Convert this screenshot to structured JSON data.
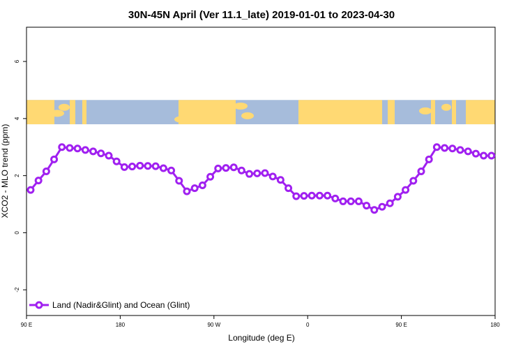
{
  "chart_data": {
    "type": "line",
    "title": "30N-45N April (Ver 11.1_late)   2019-01-01 to 2023-04-30",
    "xlabel": "Longitude (deg E)",
    "ylabel": "XCO2 - MLO trend (ppm)",
    "x_ticks": [
      {
        "value": 90,
        "label": "90 E"
      },
      {
        "value": 180,
        "label": "180"
      },
      {
        "value": 270,
        "label": "90 W"
      },
      {
        "value": 360,
        "label": "0"
      },
      {
        "value": 450,
        "label": "90 E"
      },
      {
        "value": 540,
        "label": "180"
      }
    ],
    "y_ticks": [
      {
        "value": -2,
        "label": "-2"
      },
      {
        "value": 0,
        "label": "0"
      },
      {
        "value": 2,
        "label": "2"
      },
      {
        "value": 4,
        "label": "4"
      },
      {
        "value": 6,
        "label": "6"
      }
    ],
    "xlim": [
      90,
      540
    ],
    "ylim": [
      -2.9,
      7.2
    ],
    "grid": false,
    "legend_position": "bottom-left",
    "map_band": {
      "y_range": [
        3.8,
        4.65
      ],
      "land_color": "#FFD973",
      "ocean_color": "#A6BCDB"
    },
    "series": [
      {
        "name": "Land (Nadir&Glint) and Ocean (Glint)",
        "color": "#A020F0",
        "x": [
          94,
          101.5,
          109,
          116.5,
          124,
          131.5,
          139,
          146.5,
          154,
          161.5,
          169,
          176.5,
          184,
          191.5,
          199,
          206.5,
          214,
          221.5,
          229,
          236.5,
          244,
          251.5,
          259,
          266.5,
          274,
          281.5,
          289,
          296.5,
          304,
          311.5,
          319,
          326.5,
          334,
          341.5,
          349,
          356.5,
          364,
          371.5,
          379,
          386.5,
          394,
          401.5,
          409,
          416.5,
          424,
          431.5,
          439,
          446.5,
          454,
          461.5,
          469,
          476.5,
          484,
          491.5,
          499,
          506.5,
          514,
          521.5,
          529,
          536.5
        ],
        "y": [
          1.5,
          1.83,
          2.15,
          2.57,
          3.0,
          2.97,
          2.95,
          2.9,
          2.85,
          2.78,
          2.7,
          2.5,
          2.3,
          2.32,
          2.35,
          2.34,
          2.33,
          2.26,
          2.18,
          1.82,
          1.45,
          1.56,
          1.66,
          1.96,
          2.25,
          2.27,
          2.29,
          2.18,
          2.06,
          2.08,
          2.09,
          1.97,
          1.85,
          1.56,
          1.28,
          1.29,
          1.3,
          1.3,
          1.3,
          1.2,
          1.1,
          1.1,
          1.1,
          0.95,
          0.8,
          0.91,
          1.03,
          1.26,
          1.5,
          1.82,
          2.15,
          2.57,
          3.0,
          2.97,
          2.95,
          2.9,
          2.85,
          2.77,
          2.7,
          2.7
        ]
      }
    ]
  }
}
